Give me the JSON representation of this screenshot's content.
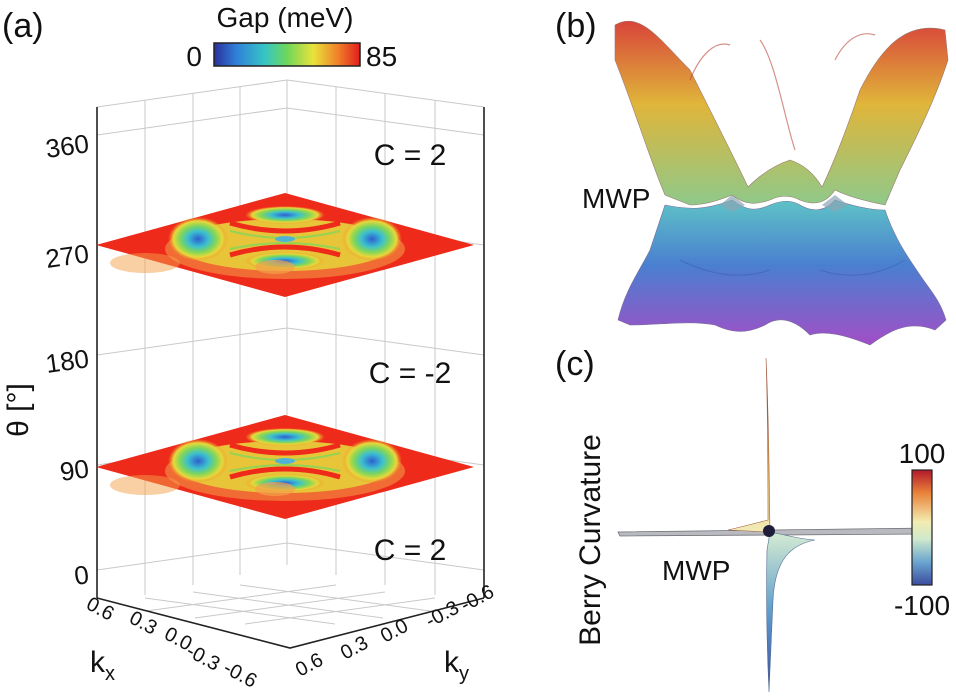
{
  "panel_labels": {
    "a": "(a)",
    "b": "(b)",
    "c": "(c)"
  },
  "panel_a": {
    "colorbar": {
      "title": "Gap (meV)",
      "min_label": "0",
      "max_label": "85"
    },
    "z_axis": {
      "label": "θ [°]",
      "ticks": [
        "0",
        "90",
        "180",
        "270",
        "360"
      ]
    },
    "kx_axis": {
      "label": "k",
      "sub": "x",
      "ticks": [
        "0.6",
        "0.3",
        "0.0",
        "-0.3",
        "-0.6"
      ]
    },
    "ky_axis": {
      "label": "k",
      "sub": "y",
      "ticks": [
        "-0.6",
        "-0.3",
        "0.0",
        "0.3",
        "0.6"
      ]
    },
    "chern_labels": {
      "top": "C = 2",
      "middle": "C = -2",
      "bottom": "C = 2"
    }
  },
  "panel_b": {
    "annotation": "MWP"
  },
  "panel_c": {
    "ylabel": "Berry Curvature",
    "annotation": "MWP",
    "colorbar": {
      "max_label": "100",
      "min_label": "-100"
    }
  },
  "colors": {
    "gap_high": "#ee2a1a",
    "gap_low": "#2b6bd6",
    "point": "#1e1e3a"
  }
}
